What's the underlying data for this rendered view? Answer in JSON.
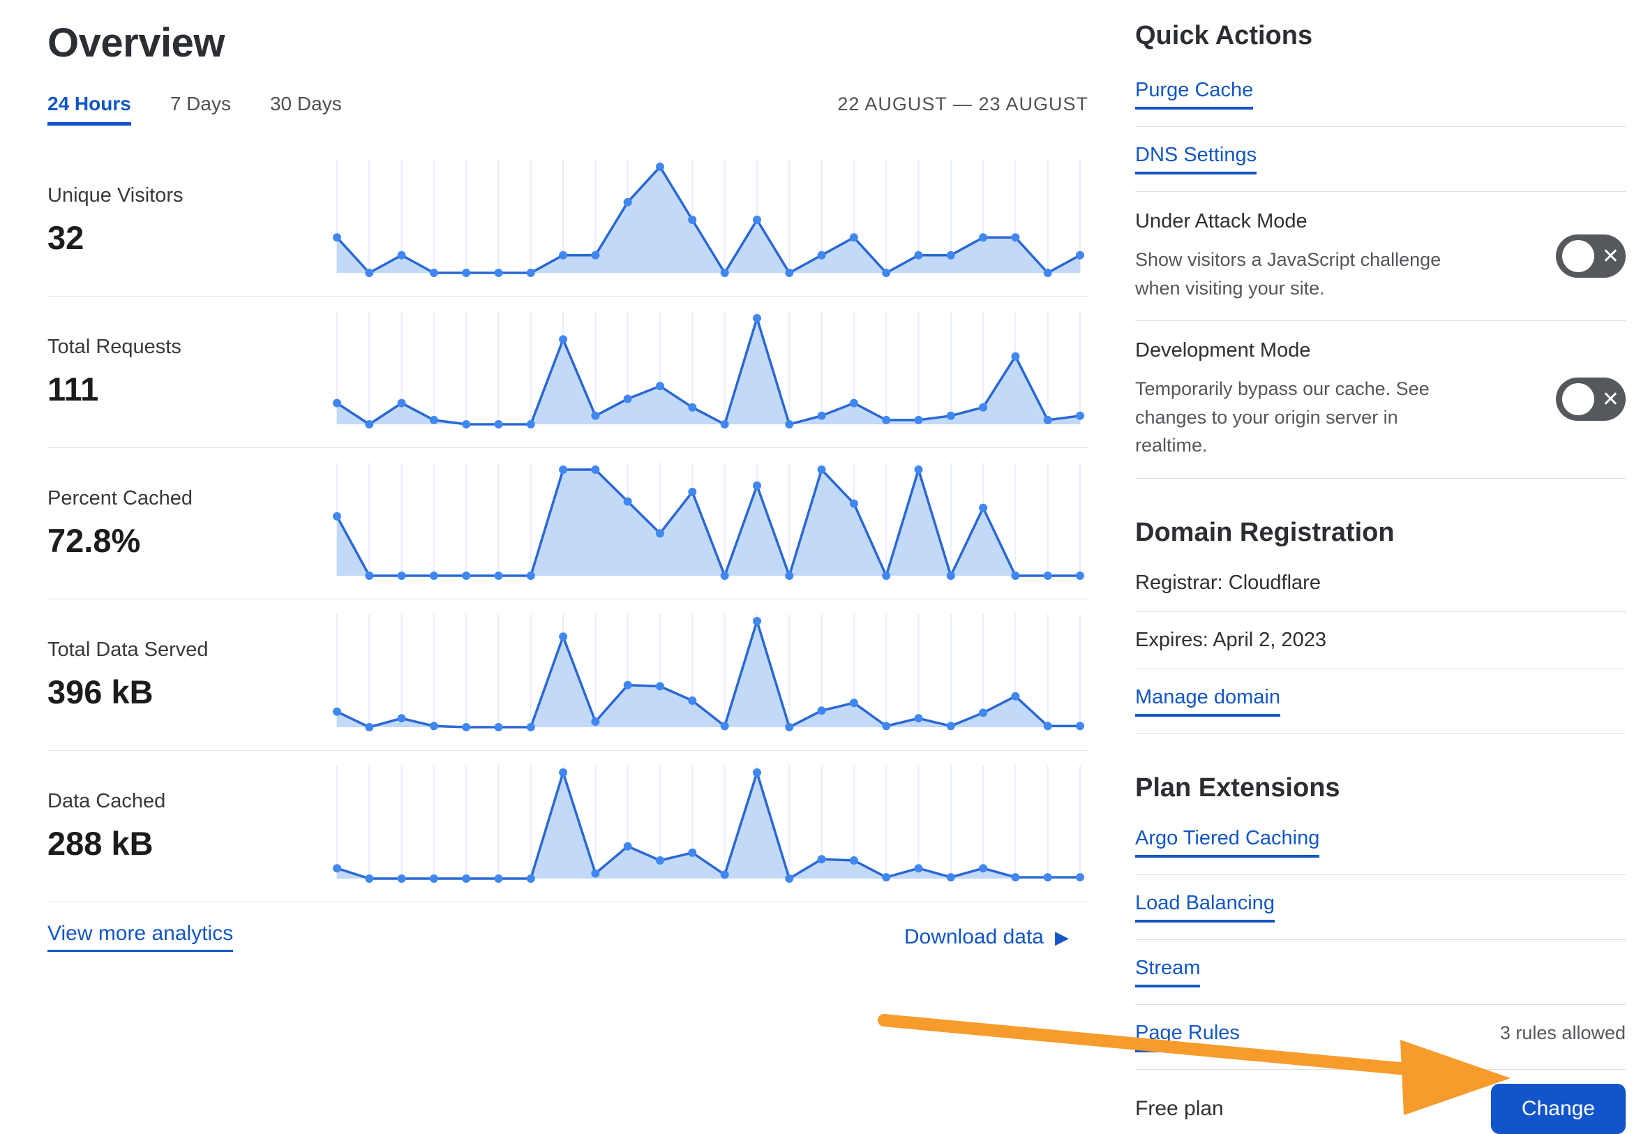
{
  "page": {
    "title": "Overview"
  },
  "tabs": [
    {
      "label": "24 Hours",
      "active": true
    },
    {
      "label": "7 Days",
      "active": false
    },
    {
      "label": "30 Days",
      "active": false
    }
  ],
  "date_range": "22 AUGUST — 23 AUGUST",
  "charts": [
    {
      "type": "area-sparkline",
      "label": "Unique Visitors",
      "value": "32",
      "values": [
        2,
        0,
        1,
        0,
        0,
        0,
        0,
        1,
        1,
        4,
        6,
        3,
        0,
        3,
        0,
        1,
        2,
        0,
        1,
        1,
        2,
        2,
        0,
        1
      ]
    },
    {
      "type": "area-sparkline",
      "label": "Total Requests",
      "value": "111",
      "values": [
        5,
        0,
        5,
        1,
        0,
        0,
        0,
        20,
        2,
        6,
        9,
        4,
        0,
        25,
        0,
        2,
        5,
        1,
        1,
        2,
        4,
        16,
        1,
        2
      ]
    },
    {
      "type": "area-sparkline",
      "label": "Percent Cached",
      "value": "72.8%",
      "values": [
        56,
        0,
        0,
        0,
        0,
        0,
        0,
        100,
        100,
        70,
        40,
        79,
        0,
        85,
        0,
        100,
        68,
        0,
        100,
        0,
        64,
        0,
        0,
        0
      ]
    },
    {
      "type": "area-sparkline",
      "label": "Total Data Served",
      "value": "396 kB",
      "values": [
        14,
        0,
        8,
        1,
        0,
        0,
        0,
        82,
        5,
        38,
        37,
        24,
        1,
        96,
        0,
        15,
        22,
        1,
        8,
        1,
        13,
        28,
        1,
        1
      ]
    },
    {
      "type": "area-sparkline",
      "label": "Data Cached",
      "value": "288 kB",
      "values": [
        8,
        0,
        0,
        0,
        0,
        0,
        0,
        82,
        4,
        25,
        14,
        20,
        3,
        82,
        0,
        15,
        14,
        1,
        8,
        1,
        8,
        1,
        1,
        1
      ]
    }
  ],
  "footer_links": {
    "view_more": "View more analytics",
    "download": "Download data"
  },
  "quick_actions": {
    "heading": "Quick Actions",
    "purge_cache": "Purge Cache",
    "dns_settings": "DNS Settings",
    "under_attack": {
      "title": "Under Attack Mode",
      "description": "Show visitors a JavaScript challenge when visiting your site.",
      "enabled": false
    },
    "development_mode": {
      "title": "Development Mode",
      "description": "Temporarily bypass our cache. See changes to your origin server in realtime.",
      "enabled": false
    }
  },
  "domain_registration": {
    "heading": "Domain Registration",
    "registrar": "Registrar: Cloudflare",
    "expires": "Expires: April 2, 2023",
    "manage": "Manage domain"
  },
  "plan_extensions": {
    "heading": "Plan Extensions",
    "links": [
      "Argo Tiered Caching",
      "Load Balancing",
      "Stream",
      "Page Rules"
    ],
    "page_rules_note": "3 rules allowed"
  },
  "plan": {
    "label": "Free plan",
    "change_button": "Change"
  },
  "icons": {
    "download_caret": "▶",
    "toggle_x": "✕"
  },
  "colors": {
    "link": "#1356c4",
    "button_blue": "#1254c9",
    "chart_line": "#2968d3",
    "chart_dot": "#4187f2",
    "chart_fill": "#c3d9f8",
    "gridline": "#e8eefb",
    "arrow_orange": "#f79b2d"
  }
}
